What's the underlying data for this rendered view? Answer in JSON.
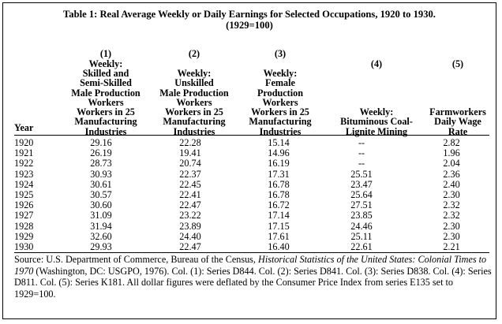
{
  "title_line1": "Table 1: Real Average Weekly or Daily Earnings for Selected Occupations, 1920 to 1930.",
  "title_line2": "(1929=100)",
  "columns": [
    {
      "num": "(1)",
      "lines": [
        "Weekly:",
        "Skilled and",
        "Semi-Skilled",
        "Male Production",
        "Workers",
        "Workers in 25",
        "Manufacturing",
        "Industries"
      ]
    },
    {
      "num": "(2)",
      "lines": [
        "Weekly:",
        "Unskilled",
        "Male Production",
        "Workers",
        "Workers in 25",
        "Manufacturing",
        "Industries"
      ]
    },
    {
      "num": "(3)",
      "lines": [
        "Weekly:",
        "Female",
        "Production",
        "Workers",
        "Workers in 25",
        "Manufacturing",
        "Industries"
      ]
    },
    {
      "num": "(4)",
      "lines": [
        "Weekly:",
        "Bituminous Coal-",
        "Lignite Mining"
      ]
    },
    {
      "num": "(5)",
      "lines": [
        "Farmworkers",
        "Daily Wage",
        "Rate"
      ]
    }
  ],
  "year_header": "Year",
  "rows": [
    [
      "1920",
      "29.16",
      "22.28",
      "15.14",
      "--",
      "2.82"
    ],
    [
      "1921",
      "26.19",
      "19.41",
      "14.96",
      "--",
      "1.96"
    ],
    [
      "1922",
      "28.73",
      "20.74",
      "16.19",
      "--",
      "2.04"
    ],
    [
      "1923",
      "30.93",
      "22.37",
      "17.31",
      "25.51",
      "2.36"
    ],
    [
      "1924",
      "30.61",
      "22.45",
      "16.78",
      "23.47",
      "2.40"
    ],
    [
      "1925",
      "30.57",
      "22.41",
      "16.78",
      "25.64",
      "2.30"
    ],
    [
      "1926",
      "30.60",
      "22.47",
      "16.72",
      "27.51",
      "2.32"
    ],
    [
      "1927",
      "31.09",
      "23.22",
      "17.14",
      "23.85",
      "2.32"
    ],
    [
      "1928",
      "31.94",
      "23.89",
      "17.15",
      "24.46",
      "2.30"
    ],
    [
      "1929",
      "32.60",
      "24.40",
      "17.61",
      "25.11",
      "2.30"
    ],
    [
      "1930",
      "29.93",
      "22.47",
      "16.40",
      "22.61",
      "2.21"
    ]
  ],
  "source": {
    "prefix": "Source: U.S. Department of Commerce, Bureau of the Census, ",
    "italic": "Historical Statistics of the United States: Colonial Times to 1970",
    "suffix": " (Washington, DC: USGPO, 1976). Col. (1): Series D844. Col. (2): Series D841. Col. (3): Series D838. Col. (4): Series D811. Col. (5): Series K181. All dollar figures were deflated by the Consumer Price Index from series E135 set to 1929=100."
  }
}
